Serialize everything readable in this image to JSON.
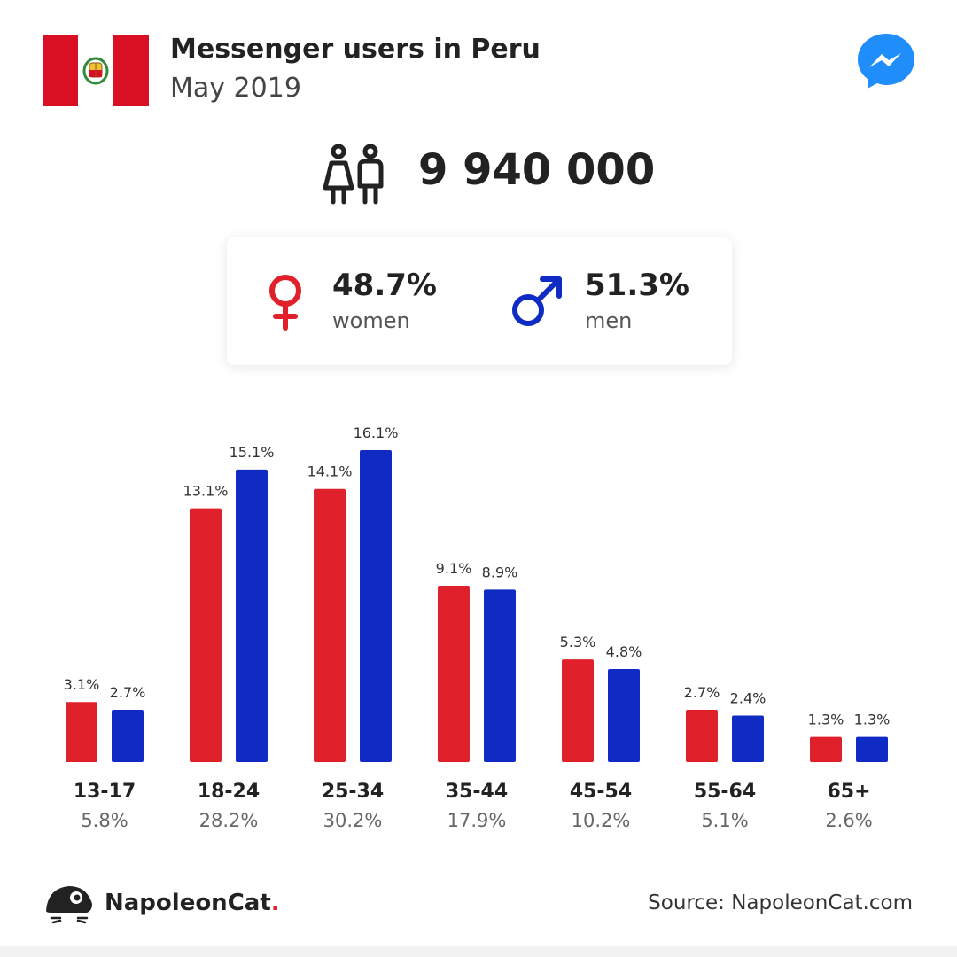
{
  "header": {
    "title": "Messenger users in Peru",
    "subtitle": "May 2019"
  },
  "totals": {
    "users": "9 940 000"
  },
  "gender": {
    "women_pct": "48.7%",
    "women_label": "women",
    "men_pct": "51.3%",
    "men_label": "men"
  },
  "colors": {
    "women": "#e0202a",
    "men": "#0f2bc4",
    "flag_red": "#d91023",
    "messenger_blue": "#1f8efa"
  },
  "icons": [
    "peru-flag-icon",
    "messenger-logo-icon",
    "users-icon",
    "female-symbol-icon",
    "male-symbol-icon",
    "napoleoncat-logo-icon"
  ],
  "chart_data": {
    "type": "bar",
    "categories": [
      "13-17",
      "18-24",
      "25-34",
      "35-44",
      "45-54",
      "55-64",
      "65+"
    ],
    "group_totals": [
      "5.8%",
      "28.2%",
      "30.2%",
      "17.9%",
      "10.2%",
      "5.1%",
      "2.6%"
    ],
    "series": [
      {
        "values": [
          3.1,
          13.1,
          14.1,
          9.1,
          5.3,
          2.7,
          1.3
        ],
        "labels": [
          "3.1%",
          "13.1%",
          "14.1%",
          "9.1%",
          "5.3%",
          "2.7%",
          "1.3%"
        ],
        "color": "#e0202a"
      },
      {
        "values": [
          2.7,
          15.1,
          16.1,
          8.9,
          4.8,
          2.4,
          1.3
        ],
        "labels": [
          "2.7%",
          "15.1%",
          "16.1%",
          "8.9%",
          "4.8%",
          "2.4%",
          "1.3%"
        ],
        "color": "#0f2bc4"
      }
    ],
    "ylim": [
      0,
      16.1
    ],
    "grid": false,
    "legend": "none"
  },
  "footer": {
    "brand": "NapoleonCat",
    "brand_dot": ".",
    "source": "Source: NapoleonCat.com"
  }
}
